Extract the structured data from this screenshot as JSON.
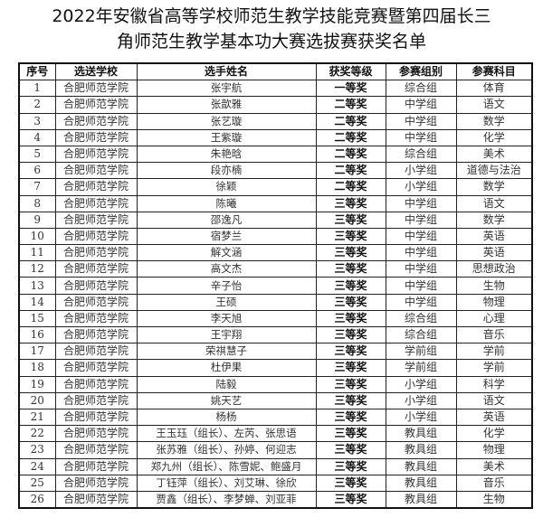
{
  "title": [
    "2022年安徽省高等学校师范生教学技能竞赛暨第四届长三",
    "角师范生教学基本功大赛选拔赛获奖名单"
  ],
  "headers": [
    "序号",
    "选送学校",
    "选手姓名",
    "获奖等级",
    "参赛组别",
    "参赛科目"
  ],
  "rows": [
    [
      "1",
      "合肥师范学院",
      "张宇航",
      "一等奖",
      "综合组",
      "体育"
    ],
    [
      "2",
      "合肥师范学院",
      "张歆雅",
      "二等奖",
      "中学组",
      "语文"
    ],
    [
      "3",
      "合肥师范学院",
      "张艺璇",
      "二等奖",
      "中学组",
      "数学"
    ],
    [
      "4",
      "合肥师范学院",
      "王紫璇",
      "二等奖",
      "中学组",
      "化学"
    ],
    [
      "5",
      "合肥师范学院",
      "朱艳晗",
      "二等奖",
      "综合组",
      "美术"
    ],
    [
      "6",
      "合肥师范学院",
      "段亦楠",
      "二等奖",
      "小学组",
      "道德与法治"
    ],
    [
      "7",
      "合肥师范学院",
      "徐颖",
      "二等奖",
      "小学组",
      "数学"
    ],
    [
      "8",
      "合肥师范学院",
      "陈曦",
      "三等奖",
      "中学组",
      "语文"
    ],
    [
      "9",
      "合肥师范学院",
      "邵逸凡",
      "三等奖",
      "中学组",
      "数学"
    ],
    [
      "10",
      "合肥师范学院",
      "宿梦兰",
      "三等奖",
      "中学组",
      "英语"
    ],
    [
      "11",
      "合肥师范学院",
      "解文涵",
      "三等奖",
      "中学组",
      "英语"
    ],
    [
      "12",
      "合肥师范学院",
      "高文杰",
      "三等奖",
      "中学组",
      "思想政治"
    ],
    [
      "13",
      "合肥师范学院",
      "辛子怡",
      "三等奖",
      "中学组",
      "生物"
    ],
    [
      "14",
      "合肥师范学院",
      "王硕",
      "三等奖",
      "中学组",
      "物理"
    ],
    [
      "15",
      "合肥师范学院",
      "李天旭",
      "三等奖",
      "综合组",
      "心理"
    ],
    [
      "16",
      "合肥师范学院",
      "王宇翔",
      "三等奖",
      "综合组",
      "音乐"
    ],
    [
      "17",
      "合肥师范学院",
      "荣祺慧子",
      "三等奖",
      "学前组",
      "学前"
    ],
    [
      "18",
      "合肥师范学院",
      "杜伊果",
      "三等奖",
      "学前组",
      "学前"
    ],
    [
      "19",
      "合肥师范学院",
      "陆毅",
      "三等奖",
      "小学组",
      "科学"
    ],
    [
      "20",
      "合肥师范学院",
      "姚天艺",
      "三等奖",
      "小学组",
      "语文"
    ],
    [
      "21",
      "合肥师范学院",
      "杨杨",
      "三等奖",
      "小学组",
      "英语"
    ],
    [
      "22",
      "合肥师范学院",
      "王玉珏（组长）、左芮、张思语",
      "三等奖",
      "教具组",
      "化学"
    ],
    [
      "23",
      "合肥师范学院",
      "张苏雅（组长）、孙婷、何迎志",
      "三等奖",
      "教具组",
      "物理"
    ],
    [
      "24",
      "合肥师范学院",
      "郑九州（组长）、陈雪妮、鲍盛月",
      "三等奖",
      "教具组",
      "美术"
    ],
    [
      "25",
      "合肥师范学院",
      "丁钰萍（组长）、刘艾琳、徐欣",
      "三等奖",
      "教具组",
      "音乐"
    ],
    [
      "26",
      "合肥师范学院",
      "贾鑫（组长）、李梦蝉、刘亚菲",
      "三等奖",
      "教具组",
      "生物"
    ]
  ]
}
